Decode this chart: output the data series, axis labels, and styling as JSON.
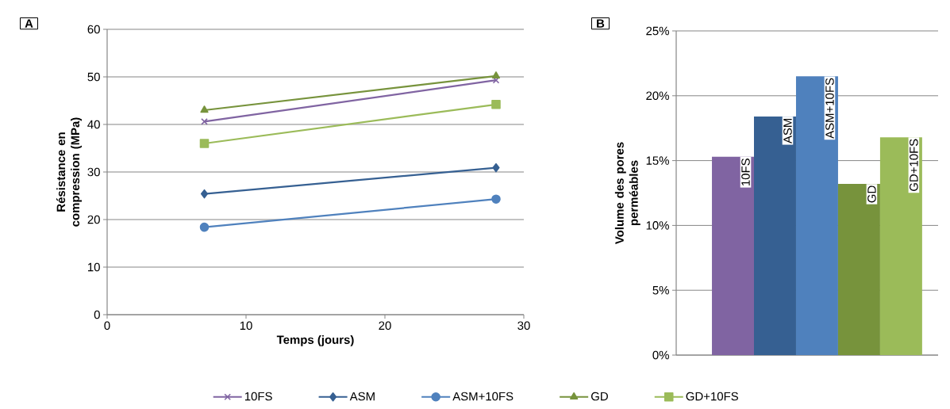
{
  "chart_data": [
    {
      "type": "line",
      "title": "A",
      "xlabel": "Temps (jours)",
      "ylabel": "Résistance en compression (MPa)",
      "x": [
        7,
        28
      ],
      "xlim": [
        0,
        30
      ],
      "xticks": [
        0,
        10,
        20,
        30
      ],
      "ylim": [
        0,
        60
      ],
      "yticks": [
        0,
        10,
        20,
        30,
        40,
        50,
        60
      ],
      "grid": "y",
      "legend": "bottom",
      "series": [
        {
          "name": "10FS",
          "color": "#8064a2",
          "marker": "cross",
          "values": [
            40.6,
            49.3
          ]
        },
        {
          "name": "ASM",
          "color": "#366092",
          "marker": "diamond",
          "values": [
            25.4,
            30.9
          ]
        },
        {
          "name": "ASM+10FS",
          "color": "#4f81bd",
          "marker": "circle",
          "values": [
            18.4,
            24.3
          ]
        },
        {
          "name": "GD",
          "color": "#77933c",
          "marker": "triangle",
          "values": [
            43.0,
            50.2
          ]
        },
        {
          "name": "GD+10FS",
          "color": "#9bbb59",
          "marker": "square",
          "values": [
            36.0,
            44.2
          ]
        }
      ]
    },
    {
      "type": "bar",
      "title": "B",
      "ylabel": "Volume des pores perméables",
      "categories": [
        "10FS",
        "ASM",
        "ASM+10FS",
        "GD",
        "GD+10FS"
      ],
      "values": [
        15.3,
        18.4,
        21.5,
        13.2,
        16.8
      ],
      "colors": [
        "#8064a2",
        "#366092",
        "#4f81bd",
        "#77933c",
        "#9bbb59"
      ],
      "ylim": [
        0,
        25
      ],
      "yticks": [
        {
          "value": 0,
          "label": "0%"
        },
        {
          "value": 5,
          "label": "5%"
        },
        {
          "value": 10,
          "label": "10%"
        },
        {
          "value": 15,
          "label": "15%"
        },
        {
          "value": 20,
          "label": "20%"
        },
        {
          "value": 25,
          "label": "25%"
        }
      ],
      "grid": "y"
    }
  ]
}
